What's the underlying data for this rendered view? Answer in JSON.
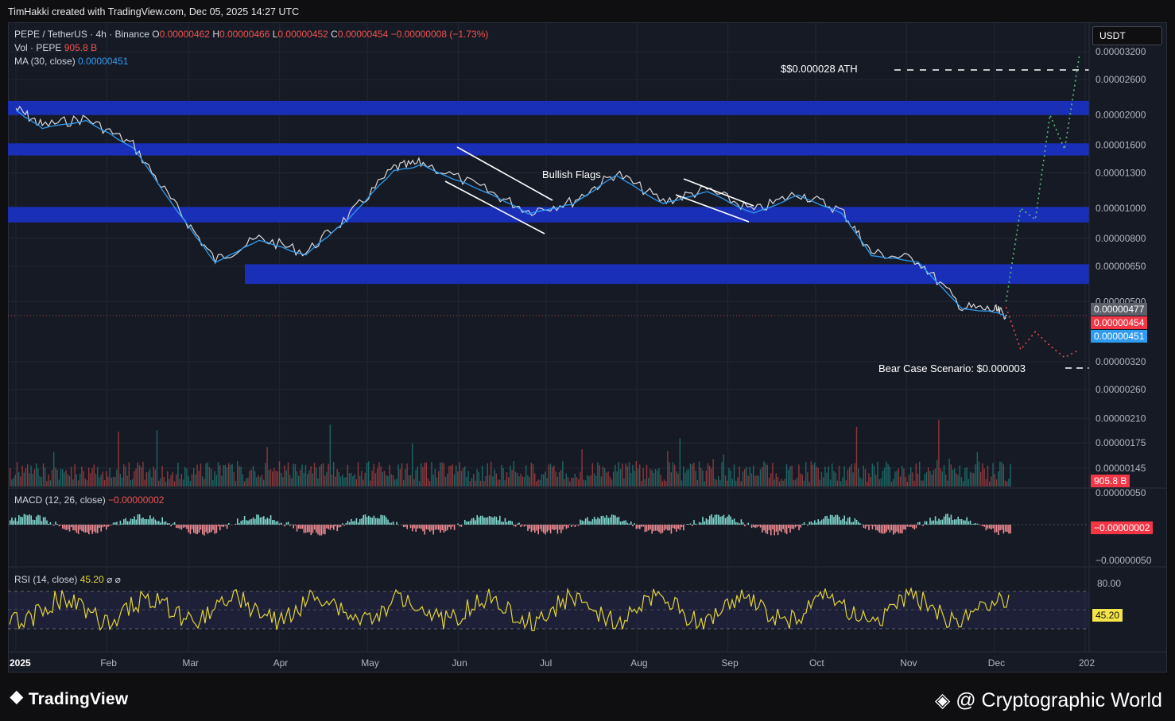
{
  "header": {
    "attribution": "TimHakki created with TradingView.com, Dec 05, 2025 14:27 UTC"
  },
  "symbol": {
    "title": "PEPE / TetherUS · 4h · Binance",
    "open_label": "O",
    "open": "0.00000462",
    "high_label": "H",
    "high": "0.00000466",
    "low_label": "L",
    "low": "0.00000452",
    "close_label": "C",
    "close": "0.00000454",
    "change": "−0.00000008 (−1.73%)"
  },
  "volume": {
    "label": "Vol · PEPE",
    "value": "905.8 B"
  },
  "ma": {
    "label": "MA (30, close)",
    "value": "0.00000451"
  },
  "currency_button": "USDT",
  "price_axis": {
    "ticks": [
      "0.00003200",
      "0.00002600",
      "0.00002000",
      "0.00001600",
      "0.00001300",
      "0.00001000",
      "0.00000800",
      "0.00000650",
      "0.00000500",
      "0.00000320",
      "0.00000260",
      "0.00000210",
      "0.00000175",
      "0.00000145",
      "0.00000050"
    ],
    "badges": {
      "last_close": "0.00000477",
      "price": "0.00000454",
      "ma": "0.00000451",
      "volume": "905.8 B"
    }
  },
  "annotations": {
    "ath": "$$0.000028 ATH",
    "bullish_flags": "Bullish Flags",
    "bear_case": "Bear Case Scenario: $0.000003"
  },
  "macd": {
    "label": "MACD (12, 26, close)",
    "value": "−0.00000002",
    "axis_top": "0.00000050",
    "axis_badge": "−0.00000002",
    "axis_bottom": "−0.00000050"
  },
  "rsi": {
    "label": "RSI (14, close)",
    "value": "45.20",
    "axis_top": "80.00",
    "axis_badge": "45.20",
    "icons": "⌀ ⌀"
  },
  "time_axis": [
    "2025",
    "Feb",
    "Mar",
    "Apr",
    "May",
    "Jun",
    "Jul",
    "Aug",
    "Sep",
    "Oct",
    "Nov",
    "Dec",
    "202"
  ],
  "footer": {
    "brand": "TradingView",
    "watermark": "@ Cryptographic World"
  },
  "colors": {
    "background": "#161a25",
    "zone": "#1a2fb8",
    "ma_line": "#2f9bf1",
    "up": "#26a69a",
    "down": "#ef5350",
    "rsi": "#e2d43a",
    "projection_up": "#57c27a",
    "projection_down": "#e84a4a"
  },
  "chart_data": {
    "type": "line",
    "title": "PEPE / TetherUS · 4h · Binance",
    "y_scale": "log",
    "x_labels": [
      "2025",
      "Feb",
      "Mar",
      "Apr",
      "May",
      "Jun",
      "Jul",
      "Aug",
      "Sep",
      "Oct",
      "Nov",
      "Dec"
    ],
    "price_path": {
      "x": [
        "2025-01-01",
        "2025-01-10",
        "2025-01-25",
        "2025-02-10",
        "2025-02-25",
        "2025-03-10",
        "2025-03-25",
        "2025-04-10",
        "2025-04-25",
        "2025-05-10",
        "2025-05-20",
        "2025-06-10",
        "2025-06-25",
        "2025-07-10",
        "2025-07-25",
        "2025-08-10",
        "2025-08-25",
        "2025-09-10",
        "2025-09-25",
        "2025-10-10",
        "2025-10-20",
        "2025-11-05",
        "2025-11-20",
        "2025-12-01",
        "2025-12-05"
      ],
      "y": [
        2.1e-05,
        1.85e-05,
        1.95e-05,
        1.6e-05,
        1e-05,
        6.8e-06,
        8e-06,
        7.2e-06,
        9.5e-06,
        1.35e-05,
        1.4e-05,
        1.15e-05,
        9.8e-06,
        1.05e-05,
        1.3e-05,
        1.05e-05,
        1.15e-05,
        9.8e-06,
        1.12e-05,
        9.8e-06,
        7.2e-06,
        6.8e-06,
        4.8e-06,
        4.7e-06,
        4.54e-06
      ]
    },
    "zones": [
      {
        "low": 2e-05,
        "high": 2.22e-05
      },
      {
        "low": 1.48e-05,
        "high": 1.62e-05
      },
      {
        "low": 9e-06,
        "high": 1.01e-05
      },
      {
        "low": 5.7e-06,
        "high": 6.6e-06
      }
    ],
    "projection_bull": {
      "x": [
        "2025-12-05",
        "2025-12-10",
        "2025-12-15",
        "2025-12-20",
        "2025-12-25",
        "2025-12-30"
      ],
      "y": [
        5e-06,
        1e-05,
        9.2e-06,
        2e-05,
        1.55e-05,
        3.1e-05
      ]
    },
    "projection_bear": {
      "x": [
        "2025-12-05",
        "2025-12-10",
        "2025-12-15",
        "2025-12-20",
        "2025-12-25",
        "2025-12-30"
      ],
      "y": [
        4.8e-06,
        3.5e-06,
        4e-06,
        3.6e-06,
        3.3e-06,
        3.5e-06
      ]
    }
  }
}
